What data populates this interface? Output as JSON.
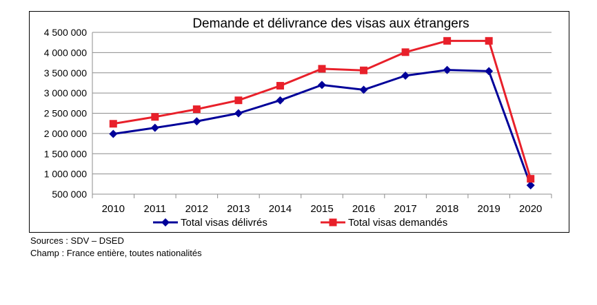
{
  "chart_data": {
    "type": "line",
    "title": "Demande et délivrance des visas aux étrangers",
    "categories": [
      "2010",
      "2011",
      "2012",
      "2013",
      "2014",
      "2015",
      "2016",
      "2017",
      "2018",
      "2019",
      "2020"
    ],
    "series": [
      {
        "name": "Total visas délivrés",
        "color": "#000099",
        "marker": "diamond",
        "values": [
          1990000,
          2140000,
          2300000,
          2500000,
          2820000,
          3200000,
          3080000,
          3430000,
          3570000,
          3540000,
          720000
        ]
      },
      {
        "name": "Total visas demandés",
        "color": "#e8202a",
        "marker": "square",
        "values": [
          2240000,
          2410000,
          2600000,
          2820000,
          3180000,
          3600000,
          3560000,
          4010000,
          4290000,
          4290000,
          880000
        ]
      }
    ],
    "ylim": [
      500000,
      4500000
    ],
    "yticks": [
      "4 500 000",
      "4 000 000",
      "3 500 000",
      "3 000 000",
      "2 500 000",
      "2 000 000",
      "1 500 000",
      "1 000 000",
      "500 000"
    ],
    "ytick_values": [
      4500000,
      4000000,
      3500000,
      3000000,
      2500000,
      2000000,
      1500000,
      1000000,
      500000
    ],
    "grid": true,
    "legend": "bottom"
  },
  "notes": {
    "sources": "Sources : SDV – DSED",
    "champ": "Champ : France entière, toutes nationalités"
  }
}
